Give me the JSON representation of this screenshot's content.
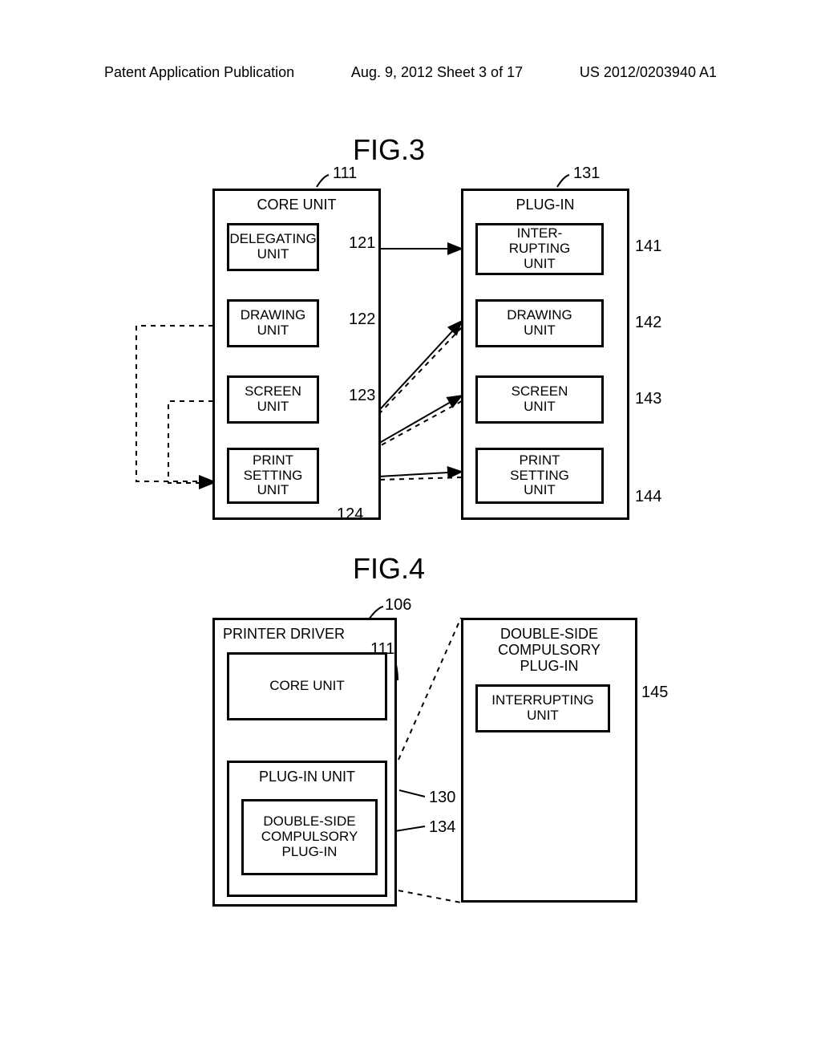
{
  "header": {
    "left": "Patent Application Publication",
    "center": "Aug. 9, 2012  Sheet 3 of 17",
    "right": "US 2012/0203940 A1"
  },
  "fig3": {
    "title": "FIG.3",
    "core": {
      "label": "CORE UNIT",
      "ref": "111",
      "delegating": {
        "label": "DELEGATING\nUNIT",
        "ref": "121"
      },
      "drawing": {
        "label": "DRAWING\nUNIT",
        "ref": "122"
      },
      "screen": {
        "label": "SCREEN\nUNIT",
        "ref": "123"
      },
      "print": {
        "label": "PRINT\nSETTING\nUNIT",
        "ref": "124"
      }
    },
    "plugin": {
      "label": "PLUG-IN",
      "ref": "131",
      "interrupting": {
        "label": "INTER-\nRUPTING\nUNIT",
        "ref": "141"
      },
      "drawing": {
        "label": "DRAWING\nUNIT",
        "ref": "142"
      },
      "screen": {
        "label": "SCREEN\nUNIT",
        "ref": "143"
      },
      "print": {
        "label": "PRINT\nSETTING\nUNIT",
        "ref": "144"
      }
    }
  },
  "fig4": {
    "title": "FIG.4",
    "driver": {
      "label": "PRINTER DRIVER",
      "ref": "106",
      "core": {
        "label": "CORE UNIT",
        "ref": "111"
      },
      "pluginunit": {
        "label": "PLUG-IN UNIT",
        "ref": "130",
        "dblplugin": {
          "label": "DOUBLE-SIDE\nCOMPULSORY\nPLUG-IN",
          "ref": "134"
        }
      }
    },
    "dblside": {
      "label": "DOUBLE-SIDE\nCOMPULSORY\nPLUG-IN",
      "interrupting": {
        "label": "INTERRUPTING\nUNIT",
        "ref": "145"
      }
    }
  },
  "style": {
    "stroke": "#000000",
    "bg": "#ffffff",
    "dash": "6,6"
  }
}
